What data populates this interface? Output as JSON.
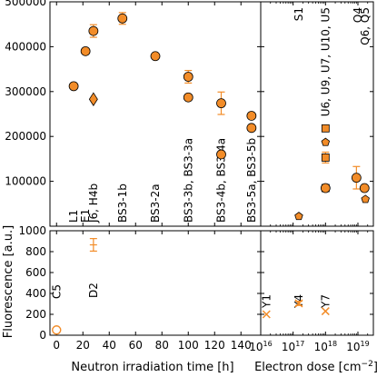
{
  "style": {
    "marker_color": "#F28C28",
    "edge_color": "#000000",
    "axis_color": "#000000"
  },
  "chart_data": [
    {
      "type": "scatter",
      "panel": "top-left",
      "ylabel": "",
      "xlim": [
        -5,
        155
      ],
      "ylim": [
        0,
        500000
      ],
      "xticks": [],
      "yticks": [
        {
          "v": 0,
          "label": ""
        },
        {
          "v": 100000,
          "label": "100000"
        },
        {
          "v": 200000,
          "label": "200000"
        },
        {
          "v": 300000,
          "label": "300000"
        },
        {
          "v": 400000,
          "label": "400000"
        },
        {
          "v": 500000,
          "label": "500000"
        }
      ],
      "series": [
        {
          "marker": "circle",
          "points": [
            {
              "x": 13,
              "y": 312000,
              "err": 0
            },
            {
              "x": 22,
              "y": 390000,
              "err": 0
            },
            {
              "x": 28,
              "y": 435000,
              "err": 14000
            },
            {
              "x": 50,
              "y": 463000,
              "err": 13000
            },
            {
              "x": 75,
              "y": 379000,
              "err": 0
            },
            {
              "x": 100,
              "y": 333000,
              "err": 14000
            },
            {
              "x": 100,
              "y": 287000,
              "err": 0
            },
            {
              "x": 125,
              "y": 274000,
              "err": 25000
            },
            {
              "x": 125,
              "y": 160000,
              "err": 0
            },
            {
              "x": 148,
              "y": 246000,
              "err": 0
            },
            {
              "x": 148,
              "y": 219000,
              "err": 0
            }
          ]
        },
        {
          "marker": "diamond",
          "points": [
            {
              "x": 28,
              "y": 283000,
              "err": 0
            }
          ]
        }
      ],
      "annotations": [
        {
          "x": 13,
          "text": "L1"
        },
        {
          "x": 22,
          "text": "E1"
        },
        {
          "x": 28,
          "text": "J6, H4b"
        },
        {
          "x": 50,
          "text": "BS3-1b"
        },
        {
          "x": 75,
          "text": "BS3-2a"
        },
        {
          "x": 100,
          "text": "BS3-3b, BS3-3a"
        },
        {
          "x": 125,
          "text": "BS3-4b, BS3-4a"
        },
        {
          "x": 148,
          "text": "BS3-5a, BS3-5b"
        }
      ]
    },
    {
      "type": "scatter",
      "panel": "top-right",
      "xscale": "log",
      "xlim": [
        1e+16,
        3e+19
      ],
      "ylim": [
        0,
        500000
      ],
      "series": [
        {
          "marker": "pentagon",
          "points": [
            {
              "x": 1.5e+17,
              "y": 22000,
              "err": 0
            },
            {
              "x": 1e+18,
              "y": 187000,
              "err": 0
            },
            {
              "x": 1.7e+19,
              "y": 60000,
              "err": 0
            }
          ]
        },
        {
          "marker": "square",
          "points": [
            {
              "x": 1e+18,
              "y": 218000,
              "err": 0
            },
            {
              "x": 1e+18,
              "y": 153000,
              "err": 12000
            },
            {
              "x": 1e+18,
              "y": 85000,
              "err": 0
            }
          ]
        },
        {
          "marker": "circle",
          "points": [
            {
              "x": 1e+18,
              "y": 85000,
              "err": 0
            },
            {
              "x": 9e+18,
              "y": 108000,
              "err": 25000
            },
            {
              "x": 1.6e+19,
              "y": 85000,
              "err": 0
            }
          ]
        }
      ],
      "annotations": [
        {
          "x": 1.5e+17,
          "text": "S1"
        },
        {
          "x": 1e+18,
          "text": "U6, U9, U7, U10, U5"
        },
        {
          "x": 1e+19,
          "text": "Q4"
        },
        {
          "x": 1.7e+19,
          "text": "Q6, Q5"
        }
      ]
    },
    {
      "type": "scatter",
      "panel": "bottom-left",
      "xlabel": "Neutron irradiation time [h]",
      "ylabel": "Fluorescence [a.u.]",
      "xlim": [
        -5,
        155
      ],
      "ylim": [
        0,
        1000
      ],
      "xticks": [
        {
          "v": 0,
          "label": "0"
        },
        {
          "v": 20,
          "label": "20"
        },
        {
          "v": 40,
          "label": "40"
        },
        {
          "v": 60,
          "label": "60"
        },
        {
          "v": 80,
          "label": "80"
        },
        {
          "v": 100,
          "label": "100"
        },
        {
          "v": 120,
          "label": "120"
        },
        {
          "v": 140,
          "label": "140"
        }
      ],
      "yticks": [
        {
          "v": 0,
          "label": "0"
        },
        {
          "v": 200,
          "label": "200"
        },
        {
          "v": 400,
          "label": "400"
        },
        {
          "v": 600,
          "label": "600"
        },
        {
          "v": 800,
          "label": "800"
        },
        {
          "v": 1000,
          "label": "1000"
        }
      ],
      "series": [
        {
          "marker": "open-circle",
          "points": [
            {
              "x": 0,
              "y": 50,
              "err": 0
            }
          ]
        },
        {
          "marker": "errorbar",
          "points": [
            {
              "x": 28,
              "y": 865,
              "err": 60
            }
          ]
        }
      ],
      "annotations": [
        {
          "x": 0,
          "text": "C5"
        },
        {
          "x": 28,
          "text": "D2"
        }
      ]
    },
    {
      "type": "scatter",
      "panel": "bottom-right",
      "xscale": "log",
      "xlabel": "Electron dose [cm",
      "xlabel_sup": "−2",
      "xlabel_tail": "]",
      "xlim": [
        1e+16,
        3e+19
      ],
      "ylim": [
        0,
        1000
      ],
      "xticks": [
        {
          "v": 1e+16,
          "base": "10",
          "exp": "16"
        },
        {
          "v": 1e+17,
          "base": "10",
          "exp": "17"
        },
        {
          "v": 1e+18,
          "base": "10",
          "exp": "18"
        },
        {
          "v": 1e+19,
          "base": "10",
          "exp": "19"
        }
      ],
      "series": [
        {
          "marker": "x",
          "points": [
            {
              "x": 1.5e+16,
              "y": 200,
              "err": 0
            },
            {
              "x": 1.5e+17,
              "y": 305,
              "err": 20
            },
            {
              "x": 1e+18,
              "y": 230,
              "err": 0
            }
          ]
        }
      ],
      "annotations": [
        {
          "x": 1.5e+16,
          "text": "Y1"
        },
        {
          "x": 1.5e+17,
          "text": "Y4"
        },
        {
          "x": 1e+18,
          "text": "Y7"
        }
      ]
    }
  ]
}
